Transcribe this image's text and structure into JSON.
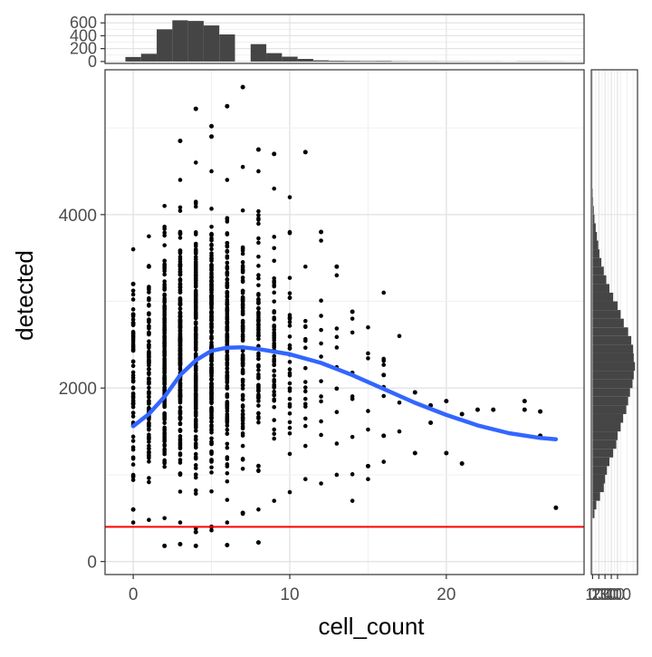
{
  "chart_data": [
    {
      "type": "scatter",
      "id": "main",
      "xlabel": "cell_count",
      "ylabel": "detected",
      "xlim": [
        -1.8,
        28.8
      ],
      "ylim": [
        -150,
        5670
      ],
      "x_ticks": [
        0,
        10,
        20
      ],
      "y_ticks": [
        0,
        2000,
        4000
      ],
      "grid": true,
      "hline": {
        "y": 400,
        "color": "#ff0000"
      },
      "smooth": {
        "color": "#3366ff",
        "x": [
          0,
          1,
          2,
          3,
          4,
          5,
          6,
          7,
          8,
          9,
          10,
          12,
          14,
          16,
          18,
          20,
          22,
          24,
          26,
          27
        ],
        "y": [
          1560,
          1700,
          1900,
          2150,
          2320,
          2430,
          2465,
          2470,
          2450,
          2420,
          2390,
          2290,
          2150,
          1990,
          1830,
          1690,
          1570,
          1480,
          1425,
          1410
        ]
      },
      "point_columns": [
        {
          "x": 0,
          "min": 450,
          "max": 3600,
          "count": 70
        },
        {
          "x": 1,
          "min": 480,
          "max": 3750,
          "count": 120
        },
        {
          "x": 2,
          "min": 500,
          "max": 4100,
          "count": 190
        },
        {
          "x": 3,
          "min": 450,
          "max": 4400,
          "count": 230
        },
        {
          "x": 4,
          "min": 380,
          "max": 4600,
          "count": 240
        },
        {
          "x": 5,
          "min": 360,
          "max": 4500,
          "count": 220
        },
        {
          "x": 6,
          "min": 450,
          "max": 4400,
          "count": 160
        },
        {
          "x": 7,
          "min": 550,
          "max": 4550,
          "count": 110
        },
        {
          "x": 8,
          "min": 600,
          "max": 4500,
          "count": 80
        },
        {
          "x": 9,
          "min": 700,
          "max": 4300,
          "count": 55
        },
        {
          "x": 10,
          "min": 800,
          "max": 4200,
          "count": 35
        },
        {
          "x": 11,
          "min": 950,
          "max": 3400,
          "count": 18
        },
        {
          "x": 12,
          "min": 900,
          "max": 3700,
          "count": 12
        },
        {
          "x": 13,
          "min": 1000,
          "max": 3300,
          "count": 10
        },
        {
          "x": 14,
          "min": 700,
          "max": 2800,
          "count": 8
        },
        {
          "x": 15,
          "min": 950,
          "max": 2700,
          "count": 6
        },
        {
          "x": 16,
          "min": 1150,
          "max": 3100,
          "count": 7
        },
        {
          "x": 17,
          "min": 1500,
          "max": 2600,
          "count": 3
        }
      ],
      "points": [
        [
          0,
          3200
        ],
        [
          0,
          2850
        ],
        [
          0,
          2750
        ],
        [
          0,
          600
        ],
        [
          1,
          3400
        ],
        [
          2,
          180
        ],
        [
          3,
          200
        ],
        [
          3,
          4850
        ],
        [
          4,
          180
        ],
        [
          4,
          340
        ],
        [
          4,
          5220
        ],
        [
          5,
          5020
        ],
        [
          5,
          4900
        ],
        [
          5,
          400
        ],
        [
          6,
          5250
        ],
        [
          6,
          190
        ],
        [
          7,
          5470
        ],
        [
          7,
          560
        ],
        [
          8,
          4750
        ],
        [
          8,
          220
        ],
        [
          9,
          4700
        ],
        [
          11,
          4720
        ],
        [
          12,
          3800
        ],
        [
          13,
          3400
        ],
        [
          14,
          2880
        ],
        [
          15,
          1100
        ],
        [
          16,
          1450
        ],
        [
          16,
          2150
        ],
        [
          18,
          1250
        ],
        [
          18,
          1950
        ],
        [
          19,
          1800
        ],
        [
          19,
          1600
        ],
        [
          20,
          1250
        ],
        [
          20,
          1850
        ],
        [
          21,
          1700
        ],
        [
          21,
          1130
        ],
        [
          22,
          1750
        ],
        [
          23,
          1750
        ],
        [
          25,
          1850
        ],
        [
          25,
          1750
        ],
        [
          26,
          1730
        ],
        [
          26,
          1450
        ],
        [
          27,
          620
        ]
      ]
    },
    {
      "type": "bar",
      "id": "top-histogram",
      "x": [
        0,
        1,
        2,
        3,
        4,
        5,
        6,
        7,
        8,
        9,
        10,
        11,
        12,
        13,
        14,
        15,
        16,
        17,
        18,
        19,
        20,
        21,
        22,
        23,
        24,
        25,
        26,
        27
      ],
      "values": [
        70,
        120,
        500,
        640,
        630,
        560,
        420,
        0,
        270,
        130,
        75,
        40,
        18,
        12,
        10,
        8,
        9,
        4,
        3,
        3,
        2,
        2,
        1,
        1,
        0,
        2,
        2,
        1
      ],
      "y_ticks": [
        0,
        200,
        400,
        600
      ],
      "ylim": [
        -30,
        730
      ],
      "grid": true
    },
    {
      "type": "bar",
      "id": "right-histogram",
      "orientation": "horizontal",
      "bin_width": 100,
      "bin_start": 0,
      "counts": [
        0,
        0,
        0,
        0,
        0,
        30,
        60,
        120,
        180,
        200,
        230,
        270,
        330,
        380,
        400,
        450,
        490,
        540,
        570,
        600,
        640,
        660,
        680,
        660,
        650,
        620,
        570,
        500,
        450,
        400,
        330,
        270,
        220,
        180,
        140,
        110,
        90,
        70,
        50,
        30,
        20,
        10,
        5,
        0,
        0,
        0,
        0,
        0,
        0,
        0
      ],
      "x_ticks": [
        0,
        100,
        200,
        300,
        400
      ],
      "x_tick_labels": [
        "0",
        "100",
        "200",
        "300",
        "400"
      ],
      "xlim": [
        -20,
        720
      ],
      "grid": true
    }
  ]
}
